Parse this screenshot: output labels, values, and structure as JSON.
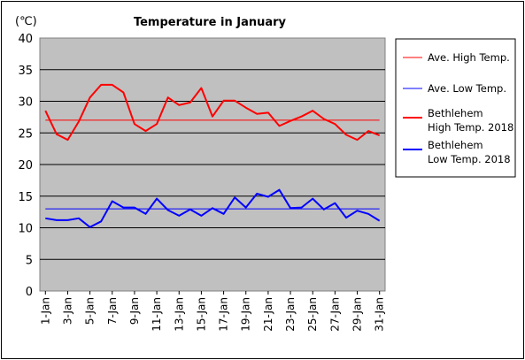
{
  "chart_data": {
    "type": "line",
    "title": "Temperature in January",
    "ylabel": "(℃)",
    "xlabel": "",
    "ylim": [
      0,
      40
    ],
    "yticks": [
      0,
      5,
      10,
      15,
      20,
      25,
      30,
      35,
      40
    ],
    "x": [
      1,
      2,
      3,
      4,
      5,
      6,
      7,
      8,
      9,
      10,
      11,
      12,
      13,
      14,
      15,
      16,
      17,
      18,
      19,
      20,
      21,
      22,
      23,
      24,
      25,
      26,
      27,
      28,
      29,
      30,
      31
    ],
    "xtick_labels": [
      "1-Jan",
      "3-Jan",
      "5-Jan",
      "7-Jan",
      "9-Jan",
      "11-Jan",
      "13-Jan",
      "15-Jan",
      "17-Jan",
      "19-Jan",
      "21-Jan",
      "23-Jan",
      "25-Jan",
      "27-Jan",
      "29-Jan",
      "31-Jan"
    ],
    "xtick_days": [
      1,
      3,
      5,
      7,
      9,
      11,
      13,
      15,
      17,
      19,
      21,
      23,
      25,
      27,
      29,
      31
    ],
    "grid": true,
    "legend_position": "right",
    "series": [
      {
        "name": "Ave. High Temp.",
        "color": "#ff0000",
        "style": "thin",
        "values": [
          27,
          27,
          27,
          27,
          27,
          27,
          27,
          27,
          27,
          27,
          27,
          27,
          27,
          27,
          27,
          27,
          27,
          27,
          27,
          27,
          27,
          27,
          27,
          27,
          27,
          27,
          27,
          27,
          27,
          27,
          27
        ]
      },
      {
        "name": "Ave. Low Temp.",
        "color": "#0000ff",
        "style": "thin",
        "values": [
          13,
          13,
          13,
          13,
          13,
          13,
          13,
          13,
          13,
          13,
          13,
          13,
          13,
          13,
          13,
          13,
          13,
          13,
          13,
          13,
          13,
          13,
          13,
          13,
          13,
          13,
          13,
          13,
          13,
          13,
          13
        ]
      },
      {
        "name": "Bethlehem\nHigh Temp. 2018",
        "color": "#ff0000",
        "style": "thick",
        "values": [
          28.5,
          24.8,
          23.9,
          26.8,
          30.6,
          32.6,
          32.6,
          31.4,
          26.4,
          25.3,
          26.4,
          30.6,
          29.4,
          29.8,
          32.1,
          27.6,
          30.1,
          30.1,
          29.0,
          28.0,
          28.2,
          26.1,
          26.9,
          27.6,
          28.5,
          27.2,
          26.4,
          24.7,
          23.9,
          25.3,
          24.6
        ]
      },
      {
        "name": "Bethlehem\nLow Temp. 2018",
        "color": "#0000ff",
        "style": "thick",
        "values": [
          11.5,
          11.2,
          11.2,
          11.5,
          10.1,
          11.0,
          14.2,
          13.2,
          13.2,
          12.2,
          14.6,
          12.8,
          11.9,
          12.9,
          11.9,
          13.1,
          12.2,
          14.8,
          13.2,
          15.4,
          14.9,
          16.0,
          13.1,
          13.2,
          14.6,
          12.9,
          13.9,
          11.6,
          12.7,
          12.2,
          11.1
        ]
      }
    ]
  }
}
